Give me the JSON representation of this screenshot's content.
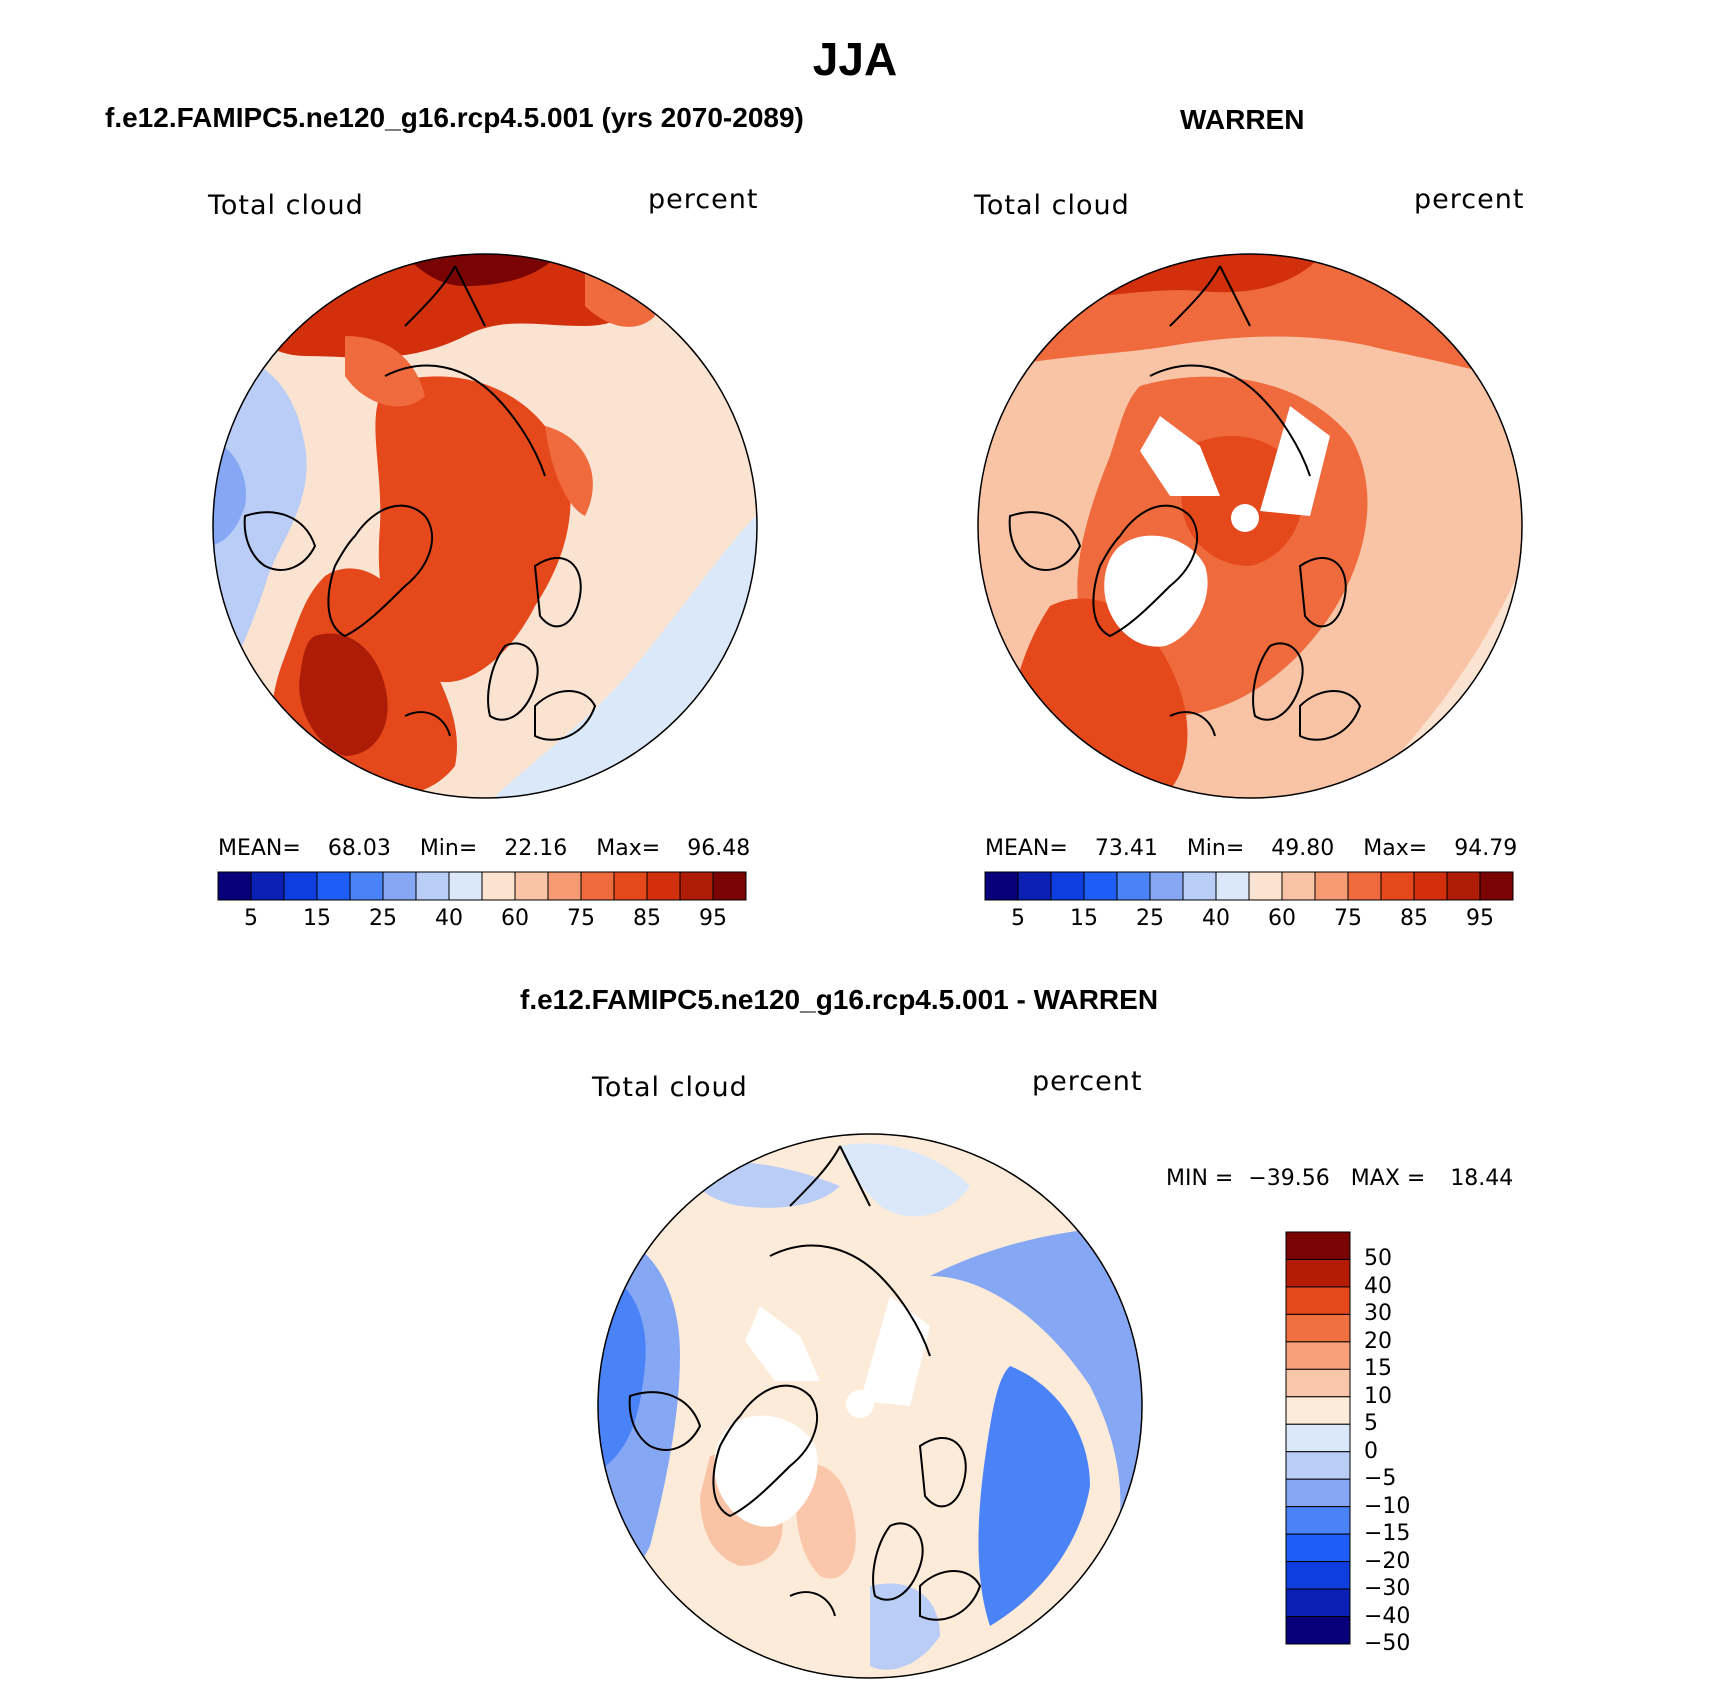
{
  "title": "JJA",
  "panels": [
    {
      "id": "model",
      "title": "f.e12.FAMIPC5.ne120_g16.rcp4.5.001 (yrs 2070-2089)",
      "variable_label": "Total cloud",
      "units_label": "percent",
      "stats": {
        "mean_label": "MEAN=",
        "mean": "68.03",
        "min_label": "Min=",
        "min": "22.16",
        "max_label": "Max=",
        "max": "96.48"
      },
      "colorbar": {
        "colors": [
          "#08007a",
          "#0a1fb4",
          "#0f3ee0",
          "#1e5ef6",
          "#4a82f7",
          "#86a8f4",
          "#b9cdf7",
          "#dbe8f9",
          "#fbe3d2",
          "#f9c4a6",
          "#f59a72",
          "#ef6a3c",
          "#e4481b",
          "#d22f0d",
          "#ad1c06",
          "#7a0303"
        ],
        "ticks": [
          "5",
          "15",
          "25",
          "40",
          "60",
          "75",
          "85",
          "95"
        ]
      }
    },
    {
      "id": "obs",
      "title": "WARREN",
      "variable_label": "Total cloud",
      "units_label": "percent",
      "stats": {
        "mean_label": "MEAN=",
        "mean": "73.41",
        "min_label": "Min=",
        "min": "49.80",
        "max_label": "Max=",
        "max": "94.79"
      },
      "colorbar": {
        "colors": [
          "#08007a",
          "#0a1fb4",
          "#0f3ee0",
          "#1e5ef6",
          "#4a82f7",
          "#86a8f4",
          "#b9cdf7",
          "#dbe8f9",
          "#fbe3d2",
          "#f9c4a6",
          "#f59a72",
          "#ef6a3c",
          "#e4481b",
          "#d22f0d",
          "#ad1c06",
          "#7a0303"
        ],
        "ticks": [
          "5",
          "15",
          "25",
          "40",
          "60",
          "75",
          "85",
          "95"
        ]
      }
    },
    {
      "id": "diff",
      "title": "f.e12.FAMIPC5.ne120_g16.rcp4.5.001 - WARREN",
      "variable_label": "Total cloud",
      "units_label": "percent",
      "minmax": {
        "min_label": "MIN =",
        "min": "−39.56",
        "max_label": "MAX =",
        "max": "18.44"
      },
      "colorbar": {
        "colors_top_to_bottom": [
          "#7a0303",
          "#b41c06",
          "#e4481b",
          "#f1703f",
          "#f8a07a",
          "#fbc7aa",
          "#fdebd9",
          "#dbe8f9",
          "#b9cdf7",
          "#86a8f4",
          "#4a82f7",
          "#1e5ef6",
          "#0f3ee0",
          "#0a1fb4",
          "#08007a"
        ],
        "ticks_top_to_bottom": [
          "50",
          "40",
          "30",
          "20",
          "15",
          "10",
          "5",
          "0",
          "−5",
          "−10",
          "−15",
          "−20",
          "−30",
          "−40",
          "−50"
        ]
      }
    }
  ]
}
